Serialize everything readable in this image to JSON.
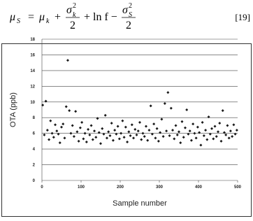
{
  "equation": {
    "lhs": {
      "symbol": "μ",
      "sub": "S"
    },
    "eq": "=",
    "term1": {
      "symbol": "μ",
      "sub": "k"
    },
    "plus1": "+",
    "frac1": {
      "num": "σ",
      "sup": "2",
      "sub": "k",
      "den": "2"
    },
    "middle": "+ ln f −",
    "frac2": {
      "num": "σ",
      "sup": "2",
      "sub": "S",
      "den": "2"
    },
    "number": "[19]"
  },
  "chart_data": {
    "type": "scatter",
    "color": "#1a1a1a",
    "grid": true,
    "xlabel": "Sample number",
    "ylabel": "OTA (ppb)",
    "xlim": [
      0,
      500
    ],
    "xticks": [
      0,
      100,
      200,
      300,
      400,
      500
    ],
    "ylim": [
      0,
      18
    ],
    "yticks": [
      0,
      2,
      4,
      6,
      8,
      10,
      12,
      14,
      16,
      18
    ],
    "x": [
      2,
      6,
      10,
      14,
      18,
      22,
      26,
      30,
      34,
      38,
      42,
      46,
      50,
      54,
      58,
      62,
      66,
      70,
      74,
      78,
      82,
      86,
      90,
      94,
      98,
      102,
      106,
      110,
      114,
      118,
      122,
      126,
      130,
      134,
      138,
      142,
      146,
      150,
      154,
      158,
      162,
      166,
      170,
      174,
      178,
      182,
      186,
      190,
      194,
      198,
      202,
      206,
      210,
      214,
      218,
      222,
      226,
      230,
      234,
      238,
      242,
      246,
      250,
      254,
      258,
      262,
      266,
      270,
      274,
      278,
      282,
      286,
      290,
      294,
      298,
      302,
      306,
      310,
      314,
      318,
      322,
      326,
      330,
      334,
      338,
      342,
      346,
      350,
      354,
      358,
      362,
      366,
      370,
      374,
      378,
      382,
      386,
      390,
      394,
      398,
      402,
      406,
      410,
      414,
      418,
      422,
      426,
      430,
      434,
      438,
      442,
      446,
      450,
      454,
      458,
      462,
      466,
      470,
      474,
      478,
      482,
      486,
      490,
      494,
      498
    ],
    "values": [
      9.6,
      5.8,
      10.1,
      6.4,
      5.2,
      7.6,
      6.0,
      5.5,
      7.1,
      6.3,
      5.9,
      4.8,
      6.8,
      7.2,
      5.4,
      9.4,
      15.3,
      8.9,
      6.0,
      7.0,
      5.6,
      8.8,
      6.2,
      5.0,
      6.7,
      7.4,
      5.3,
      6.0,
      4.9,
      6.5,
      5.8,
      7.0,
      5.2,
      6.3,
      5.5,
      7.9,
      6.1,
      4.7,
      6.6,
      5.9,
      8.3,
      5.4,
      6.2,
      5.7,
      7.3,
      5.1,
      6.4,
      5.9,
      6.9,
      5.3,
      6.0,
      7.6,
      5.5,
      6.8,
      4.9,
      6.2,
      5.7,
      7.1,
      5.4,
      6.5,
      5.8,
      6.3,
      7.4,
      5.2,
      6.0,
      5.6,
      6.9,
      5.1,
      6.4,
      9.5,
      5.9,
      7.2,
      5.4,
      6.6,
      5.0,
      6.1,
      7.8,
      5.6,
      9.8,
      6.3,
      11.2,
      5.7,
      9.2,
      6.4,
      5.3,
      7.0,
      5.8,
      6.2,
      4.8,
      7.5,
      5.5,
      6.7,
      9.0,
      5.9,
      6.3,
      5.1,
      7.2,
      6.0,
      5.4,
      6.8,
      6.1,
      4.5,
      7.4,
      5.7,
      6.4,
      5.2,
      8.1,
      5.9,
      6.6,
      5.3,
      6.9,
      5.6,
      6.2,
      7.3,
      5.0,
      8.9,
      6.1,
      5.8,
      7.0,
      5.4,
      6.3,
      5.6,
      7.1,
      5.9,
      6.4
    ]
  }
}
